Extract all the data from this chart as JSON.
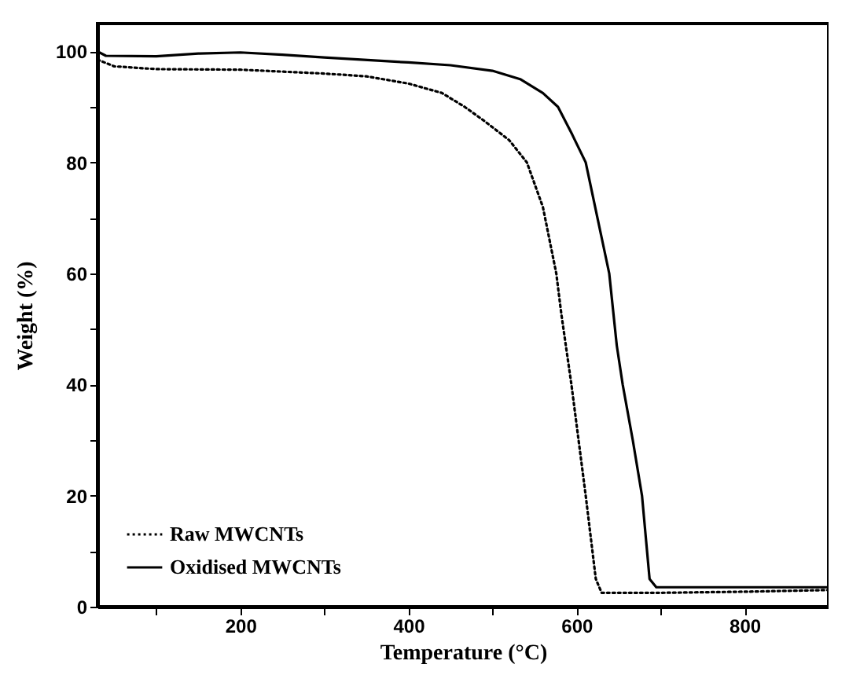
{
  "chart_data": {
    "type": "line",
    "xlabel": "Temperature (°C)",
    "ylabel": "Weight (%)",
    "xlim": [
      30,
      900
    ],
    "ylim": [
      0,
      105
    ],
    "xticks": [
      {
        "value": 100,
        "label": null
      },
      200,
      {
        "value": 300,
        "label": null
      },
      400,
      {
        "value": 500,
        "label": null
      },
      600,
      {
        "value": 700,
        "label": null
      },
      800
    ],
    "yticks": [
      0,
      {
        "value": 10,
        "label": null
      },
      20,
      {
        "value": 30,
        "label": null
      },
      40,
      {
        "value": 50,
        "label": null
      },
      60,
      {
        "value": 70,
        "label": null
      },
      80,
      {
        "value": 90,
        "label": null
      },
      100
    ],
    "legend": "bottom left",
    "grid": false,
    "series": [
      {
        "name": "Raw MWCNTs",
        "color": "#000000",
        "line_style": "dotted",
        "x": [
          30,
          50,
          100,
          200,
          300,
          350,
          400,
          440,
          467,
          490,
          520,
          541,
          560,
          576,
          582,
          594,
          611,
          623,
          630,
          700,
          800,
          900
        ],
        "values": [
          98.5,
          97.3,
          96.8,
          96.7,
          96,
          95.5,
          94.2,
          92.5,
          90,
          87.5,
          84,
          80,
          72,
          60,
          52.7,
          40,
          20,
          5,
          2.5,
          2.5,
          2.7,
          3
        ]
      },
      {
        "name": "Oxidised MWCNTs",
        "color": "#000000",
        "line_style": "solid",
        "x": [
          30,
          40,
          100,
          150,
          200,
          250,
          300,
          400,
          450,
          500,
          533,
          560,
          578,
          595,
          611,
          625,
          639,
          648,
          655,
          667,
          678,
          687,
          695,
          800,
          900
        ],
        "values": [
          100,
          99.2,
          99.1,
          99.6,
          99.8,
          99.4,
          98.9,
          98,
          97.5,
          96.5,
          95,
          92.5,
          90,
          85,
          80,
          70,
          60,
          47,
          40,
          30,
          20,
          5,
          3.5,
          3.5,
          3.5
        ]
      }
    ]
  }
}
